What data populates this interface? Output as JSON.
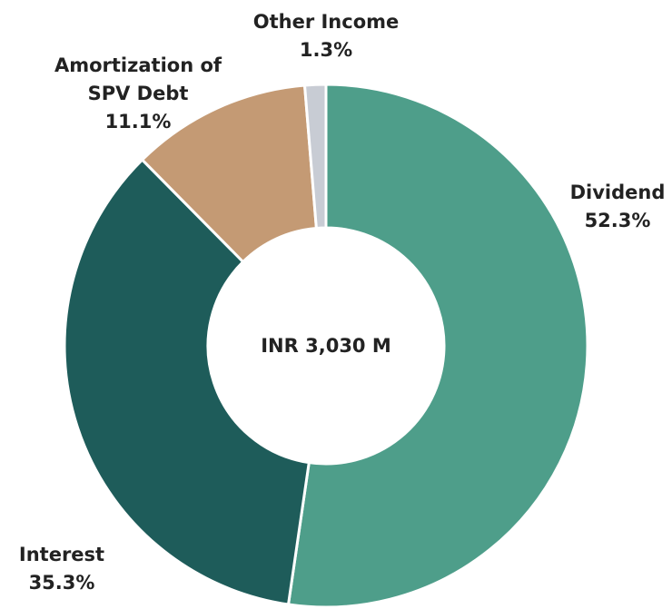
{
  "chart_data": {
    "type": "donut",
    "center_label": "INR 3,030 M",
    "categories": [
      "Dividend",
      "Interest",
      "Amortization of\nSPV Debt",
      "Other Income"
    ],
    "values": [
      52.3,
      35.3,
      11.1,
      1.3
    ],
    "value_labels": [
      "52.3%",
      "35.3%",
      "11.1%",
      "1.3%"
    ],
    "colors": [
      "#4e9e8a",
      "#1e5c5a",
      "#c49a74",
      "#c8ccd4"
    ]
  }
}
